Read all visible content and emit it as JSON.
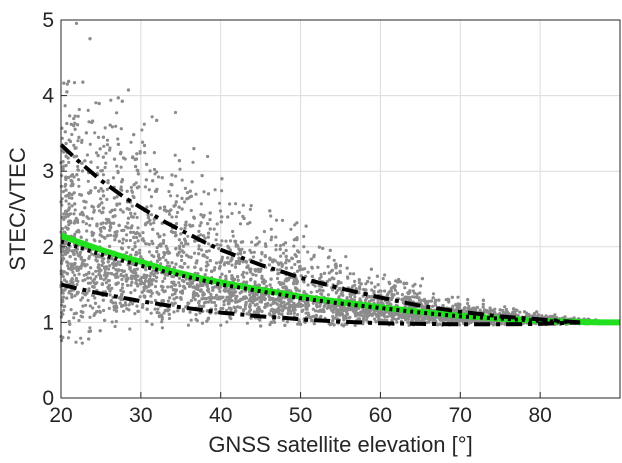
{
  "chart_data": {
    "type": "scatter",
    "title": "",
    "xlabel": "GNSS satellite elevation [°]",
    "ylabel": "STEC/VTEC",
    "xlim": [
      20,
      90
    ],
    "ylim": [
      0,
      5
    ],
    "xticks": [
      20,
      30,
      40,
      50,
      60,
      70,
      80
    ],
    "yticks": [
      0,
      1,
      2,
      3,
      4,
      5
    ],
    "grid": true,
    "legend": "none",
    "colors": {
      "scatter": "#8c8c8c",
      "mapping_function": "#22e01e",
      "envelope": "#000000",
      "axes": "#262626",
      "grid": "#dcdcdc"
    },
    "scatter": {
      "description_of_density": "dense cloud of observations spanning elevations 20-88°, centered on the mapping-function curve, spread widening toward low elevation",
      "center_curve": {
        "x": [
          20,
          25,
          30,
          35,
          40,
          45,
          50,
          55,
          60,
          65,
          70,
          75,
          80,
          85,
          88
        ],
        "y": [
          2.15,
          1.93,
          1.76,
          1.62,
          1.5,
          1.4,
          1.31,
          1.23,
          1.17,
          1.11,
          1.07,
          1.04,
          1.02,
          1.0,
          1.0
        ]
      },
      "upper_limit": {
        "x": [
          20,
          25,
          30,
          35,
          40,
          45,
          50,
          55,
          60,
          65,
          70,
          75,
          80,
          85,
          88
        ],
        "y": [
          5.0,
          4.9,
          4.3,
          3.7,
          3.2,
          2.75,
          2.4,
          2.1,
          1.85,
          1.6,
          1.4,
          1.25,
          1.15,
          1.07,
          1.03
        ]
      },
      "lower_limit": {
        "x": [
          20,
          25,
          30,
          40,
          50,
          60,
          70,
          80,
          88
        ],
        "y": [
          0.6,
          0.8,
          0.9,
          0.93,
          0.93,
          0.95,
          0.96,
          0.97,
          0.98
        ]
      }
    },
    "series": [
      {
        "style": "solid",
        "color": "#22e01e",
        "x": [
          20,
          22,
          25,
          28,
          30,
          33,
          35,
          38,
          40,
          43,
          45,
          48,
          50,
          55,
          60,
          65,
          70,
          75,
          80,
          85,
          88,
          90
        ],
        "y": [
          2.15,
          2.07,
          1.96,
          1.86,
          1.8,
          1.7,
          1.65,
          1.57,
          1.53,
          1.47,
          1.43,
          1.38,
          1.34,
          1.27,
          1.2,
          1.14,
          1.09,
          1.05,
          1.02,
          1.005,
          1.0,
          1.0
        ]
      },
      {
        "style": "dotted",
        "color": "#000000",
        "x": [
          20,
          22,
          25,
          28,
          30,
          33,
          35,
          38,
          40,
          43,
          45,
          48,
          50,
          55,
          60,
          65,
          70,
          75,
          80,
          85
        ],
        "y": [
          2.07,
          2.0,
          1.9,
          1.81,
          1.75,
          1.67,
          1.62,
          1.55,
          1.5,
          1.45,
          1.41,
          1.36,
          1.32,
          1.25,
          1.19,
          1.13,
          1.08,
          1.05,
          1.02,
          1.0
        ]
      },
      {
        "style": "dashdot",
        "color": "#000000",
        "x": [
          20,
          22,
          25,
          28,
          30,
          33,
          35,
          38,
          40,
          43,
          45,
          48,
          50,
          55,
          60,
          65,
          70,
          75,
          80,
          85
        ],
        "y": [
          3.35,
          3.15,
          2.88,
          2.65,
          2.52,
          2.33,
          2.22,
          2.06,
          1.96,
          1.84,
          1.76,
          1.66,
          1.59,
          1.45,
          1.33,
          1.22,
          1.14,
          1.08,
          1.04,
          1.0
        ]
      },
      {
        "style": "dashdot",
        "color": "#000000",
        "x": [
          20,
          22,
          25,
          28,
          30,
          33,
          35,
          38,
          40,
          43,
          45,
          48,
          50,
          55,
          60,
          65,
          70,
          75,
          80,
          85
        ],
        "y": [
          1.5,
          1.45,
          1.38,
          1.32,
          1.28,
          1.23,
          1.2,
          1.16,
          1.13,
          1.1,
          1.08,
          1.06,
          1.04,
          1.01,
          0.99,
          0.98,
          0.975,
          0.975,
          0.98,
          1.0
        ]
      }
    ]
  }
}
